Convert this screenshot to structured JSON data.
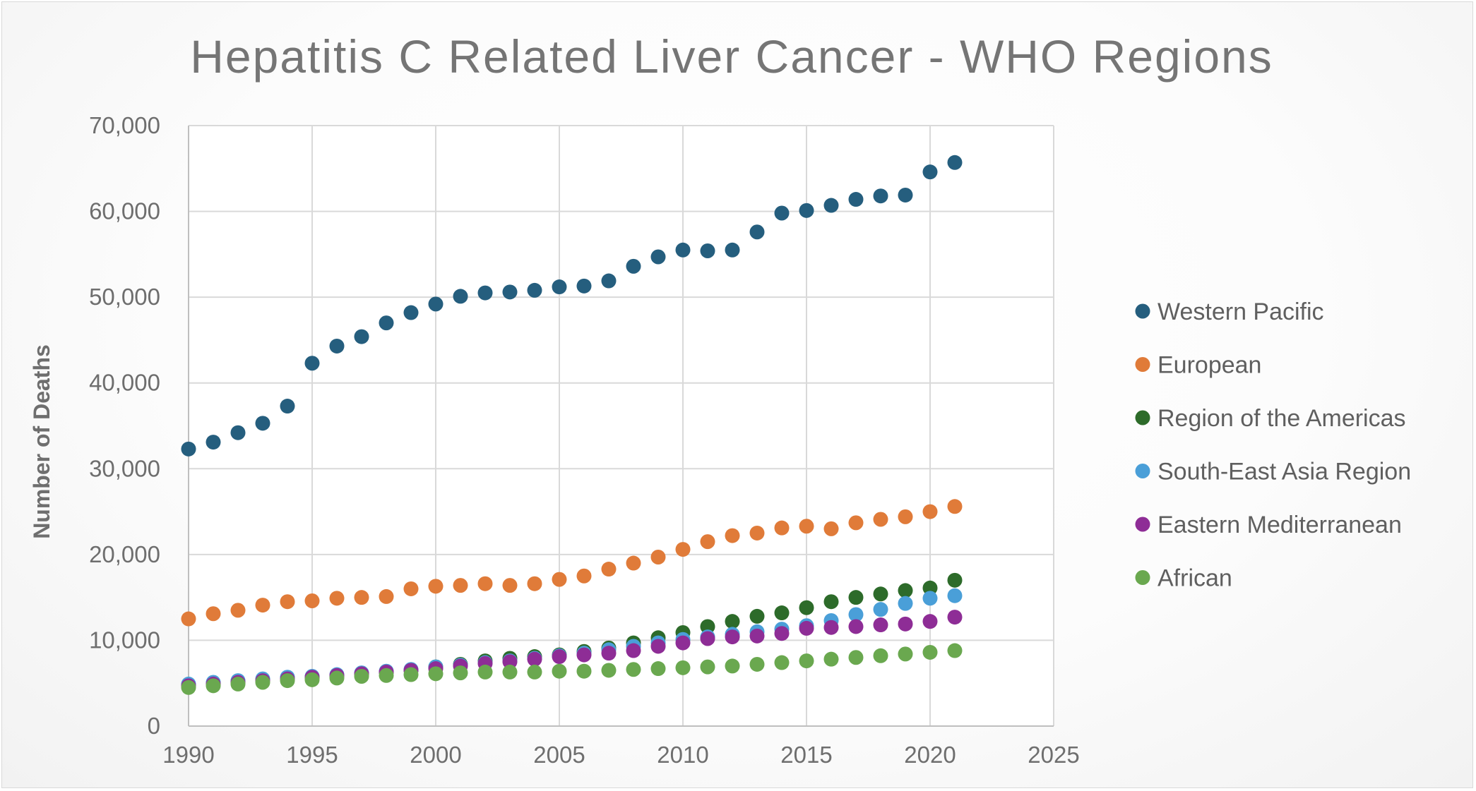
{
  "chart_data": {
    "type": "scatter",
    "title": "Hepatitis C Related Liver Cancer - WHO Regions",
    "xlabel": "",
    "ylabel": "Number of Deaths",
    "xlim": [
      1990,
      2025
    ],
    "ylim": [
      0,
      70000
    ],
    "x_ticks": [
      "1990",
      "1995",
      "2000",
      "2005",
      "2010",
      "2015",
      "2020",
      "2025"
    ],
    "y_ticks": [
      "0",
      "10,000",
      "20,000",
      "30,000",
      "40,000",
      "50,000",
      "60,000",
      "70,000"
    ],
    "x_tick_values": [
      1990,
      1995,
      2000,
      2005,
      2010,
      2015,
      2020,
      2025
    ],
    "y_tick_values": [
      0,
      10000,
      20000,
      30000,
      40000,
      50000,
      60000,
      70000
    ],
    "grid": true,
    "legend_position": "right",
    "x": [
      1990,
      1991,
      1992,
      1993,
      1994,
      1995,
      1996,
      1997,
      1998,
      1999,
      2000,
      2001,
      2002,
      2003,
      2004,
      2005,
      2006,
      2007,
      2008,
      2009,
      2010,
      2011,
      2012,
      2013,
      2014,
      2015,
      2016,
      2017,
      2018,
      2019,
      2020,
      2021
    ],
    "series": [
      {
        "name": "Western Pacific",
        "color": "#255e7e",
        "values": [
          32300,
          33100,
          34200,
          35300,
          37300,
          42300,
          44300,
          45400,
          47000,
          48200,
          49200,
          50100,
          50500,
          50600,
          50800,
          51200,
          51300,
          51900,
          53600,
          54700,
          55500,
          55400,
          55500,
          57600,
          59800,
          60100,
          60700,
          61400,
          61800,
          61900,
          64600,
          65700
        ]
      },
      {
        "name": "European",
        "color": "#e07b39",
        "values": [
          12500,
          13100,
          13500,
          14100,
          14500,
          14600,
          14900,
          15000,
          15100,
          16000,
          16300,
          16400,
          16600,
          16400,
          16600,
          17100,
          17500,
          18300,
          19000,
          19700,
          20600,
          21500,
          22200,
          22500,
          23100,
          23300,
          23000,
          23700,
          24100,
          24400,
          25000,
          25600
        ]
      },
      {
        "name": "Region of the Americas",
        "color": "#2d6b2a",
        "values": [
          4800,
          5000,
          5200,
          5400,
          5600,
          5700,
          5900,
          6100,
          6300,
          6500,
          6900,
          7200,
          7600,
          7900,
          8100,
          8300,
          8700,
          9100,
          9700,
          10300,
          10900,
          11600,
          12200,
          12800,
          13200,
          13800,
          14500,
          15000,
          15400,
          15800,
          16100,
          17000
        ]
      },
      {
        "name": "South-East Asia Region",
        "color": "#4a9fd8",
        "values": [
          4900,
          5100,
          5300,
          5500,
          5700,
          5800,
          6000,
          6200,
          6400,
          6600,
          6900,
          7100,
          7400,
          7600,
          7900,
          8200,
          8500,
          8900,
          9300,
          9700,
          10100,
          10400,
          10700,
          11000,
          11300,
          11700,
          12300,
          13000,
          13600,
          14300,
          14900,
          15200
        ]
      },
      {
        "name": "Eastern Mediterranean",
        "color": "#8e2d96",
        "values": [
          4700,
          4900,
          5100,
          5300,
          5500,
          5700,
          5900,
          6100,
          6300,
          6500,
          6700,
          7000,
          7300,
          7500,
          7800,
          8100,
          8300,
          8500,
          8800,
          9300,
          9700,
          10200,
          10400,
          10500,
          10800,
          11400,
          11500,
          11600,
          11800,
          11900,
          12200,
          12700
        ]
      },
      {
        "name": "African",
        "color": "#6aa84f",
        "values": [
          4500,
          4700,
          4900,
          5100,
          5300,
          5400,
          5600,
          5800,
          5900,
          6000,
          6100,
          6200,
          6300,
          6300,
          6300,
          6400,
          6400,
          6500,
          6600,
          6700,
          6800,
          6900,
          7000,
          7200,
          7400,
          7600,
          7800,
          8000,
          8200,
          8400,
          8600,
          8800
        ]
      }
    ]
  }
}
